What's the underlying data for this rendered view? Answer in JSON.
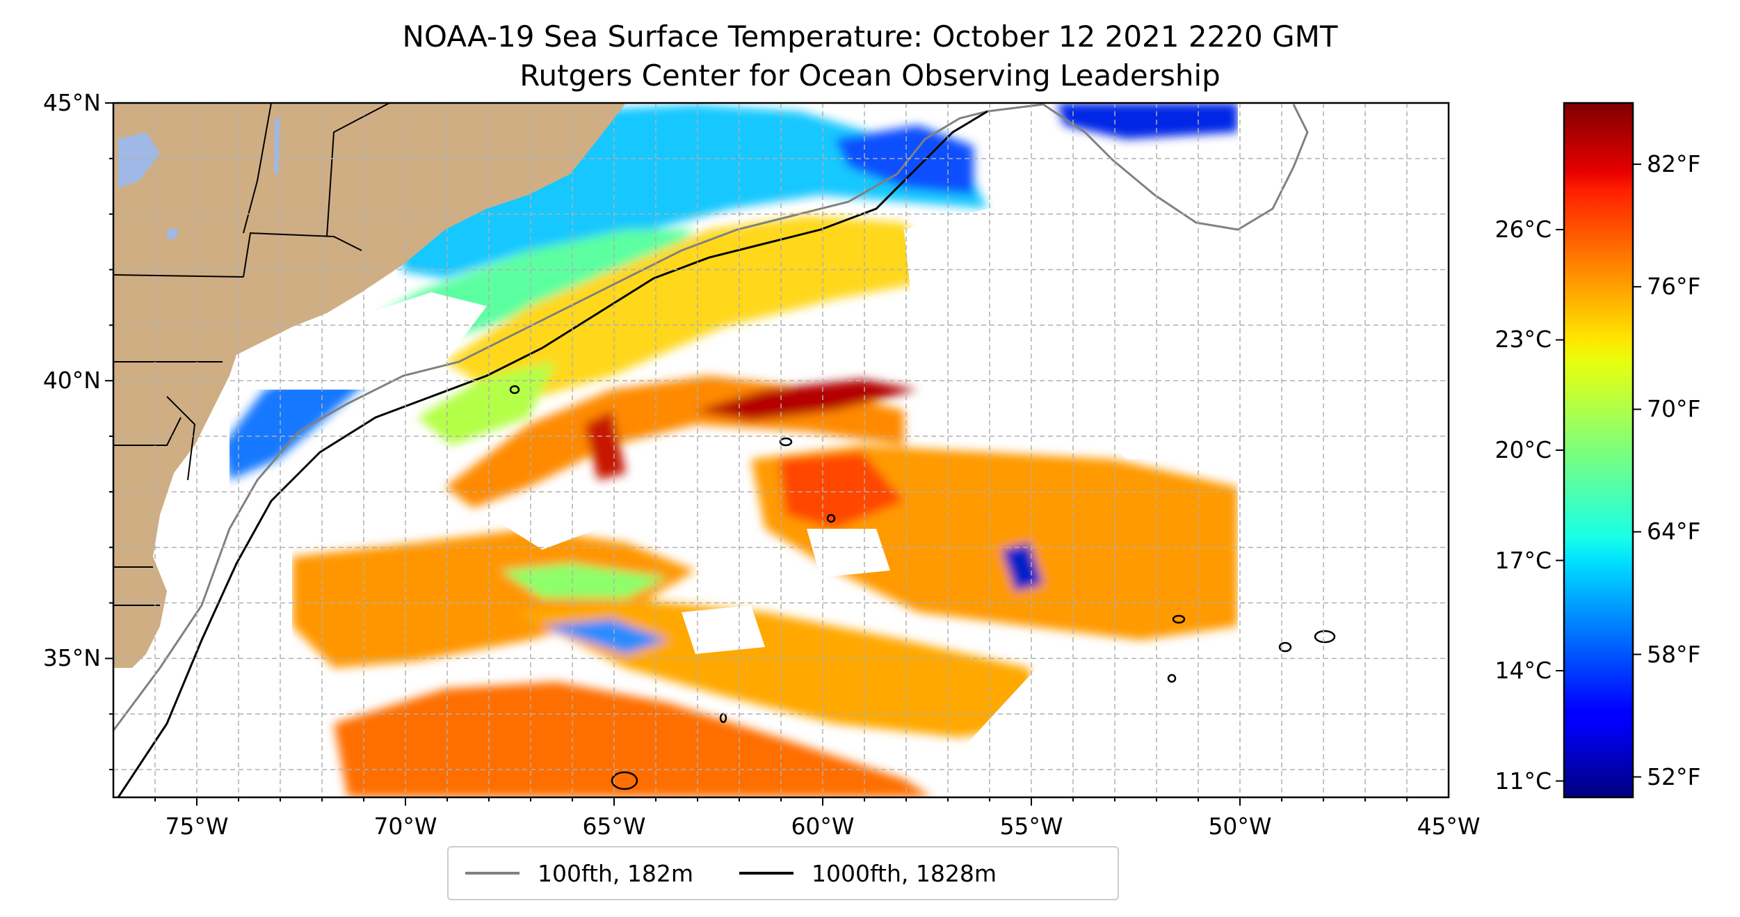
{
  "title": {
    "line1": "NOAA-19 Sea Surface Temperature: October 12 2021 2220 GMT",
    "line2": "Rutgers Center for Ocean Observing Leadership"
  },
  "map": {
    "lon_range": [
      -77,
      -45
    ],
    "lat_range": [
      32.5,
      45
    ],
    "lat_ticks": [
      {
        "value": 45,
        "label": "45°N"
      },
      {
        "value": 40,
        "label": "40°N"
      },
      {
        "value": 35,
        "label": "35°N"
      }
    ],
    "lon_ticks": [
      {
        "value": -75,
        "label": "75°W"
      },
      {
        "value": -70,
        "label": "70°W"
      },
      {
        "value": -65,
        "label": "65°W"
      },
      {
        "value": -60,
        "label": "60°W"
      },
      {
        "value": -55,
        "label": "55°W"
      },
      {
        "value": -50,
        "label": "50°W"
      },
      {
        "value": -45,
        "label": "45°W"
      }
    ],
    "grid": "dashed, 1° spacing",
    "land_color": "#cfae84",
    "lake_color": "#9fb8e6"
  },
  "colorbar": {
    "colormap": "jet",
    "celsius_ticks": [
      {
        "value": 11,
        "label": "11°C"
      },
      {
        "value": 14,
        "label": "14°C"
      },
      {
        "value": 17,
        "label": "17°C"
      },
      {
        "value": 20,
        "label": "20°C"
      },
      {
        "value": 23,
        "label": "23°C"
      },
      {
        "value": 26,
        "label": "26°C"
      }
    ],
    "fahrenheit_ticks": [
      {
        "value": 52,
        "label": "52°F"
      },
      {
        "value": 58,
        "label": "58°F"
      },
      {
        "value": 64,
        "label": "64°F"
      },
      {
        "value": 70,
        "label": "70°F"
      },
      {
        "value": 76,
        "label": "76°F"
      },
      {
        "value": 82,
        "label": "82°F"
      }
    ],
    "range_f": [
      51,
      85
    ]
  },
  "legend": {
    "items": [
      {
        "label": "100fth, 182m",
        "color": "#808080"
      },
      {
        "label": "1000fth, 1828m",
        "color": "#000000"
      }
    ]
  }
}
